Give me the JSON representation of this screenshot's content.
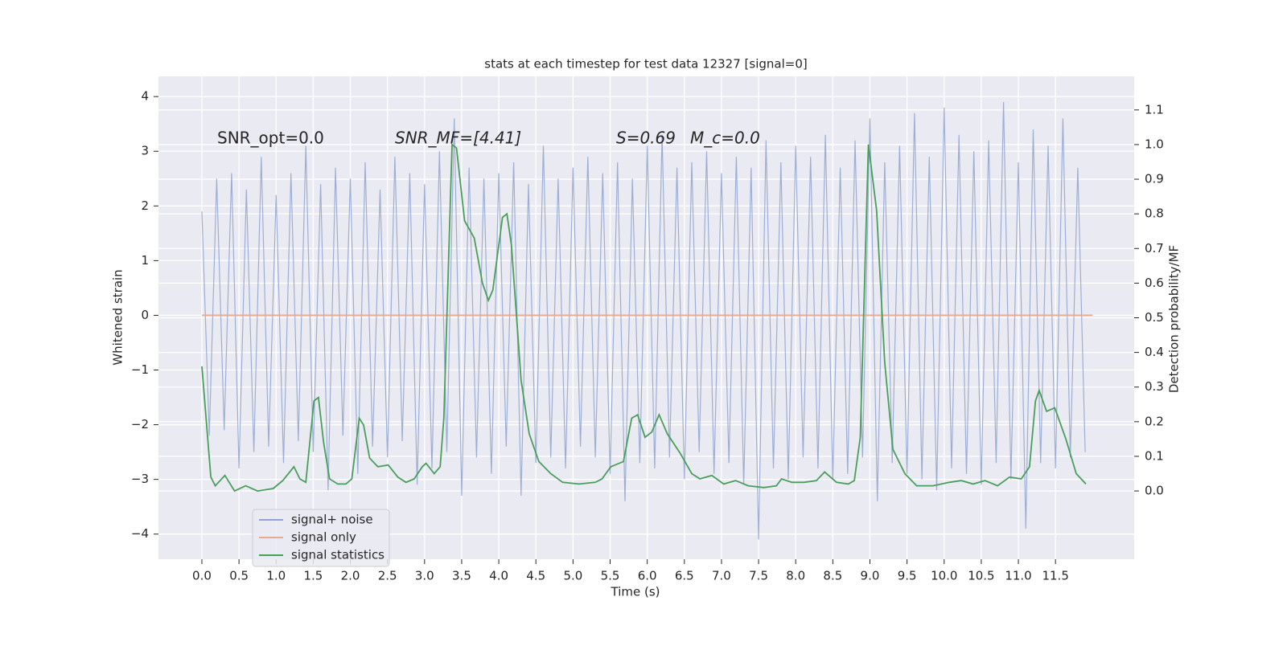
{
  "chart_data": {
    "type": "line",
    "title": "stats at each timestep for test data 12327 [signal=0]",
    "xlabel": "Time (s)",
    "ylabel": "Whitened strain",
    "y2label": "Detection probability/MF",
    "annotations": [
      "SNR_opt=0.0",
      "SNR_MF=[4.41]",
      "S=0.69",
      "M_c=0.0"
    ],
    "xlim": [
      -0.585,
      12.56
    ],
    "ylim": [
      -4.46,
      4.37
    ],
    "y2lim": [
      -0.197,
      1.197
    ],
    "xticks": [
      {
        "value": 0,
        "label": "0.0"
      },
      {
        "value": 0.5,
        "label": "0.5"
      },
      {
        "value": 1,
        "label": "1.0"
      },
      {
        "value": 1.5,
        "label": "1.5"
      },
      {
        "value": 2,
        "label": "2.0"
      },
      {
        "value": 2.5,
        "label": "2.5"
      },
      {
        "value": 3,
        "label": "3.0"
      },
      {
        "value": 3.5,
        "label": "3.5"
      },
      {
        "value": 4,
        "label": "4.0"
      },
      {
        "value": 4.5,
        "label": "4.5"
      },
      {
        "value": 5,
        "label": "5.0"
      },
      {
        "value": 5.5,
        "label": "5.5"
      },
      {
        "value": 6,
        "label": "6.0"
      },
      {
        "value": 6.5,
        "label": "6.5"
      },
      {
        "value": 7,
        "label": "7.0"
      },
      {
        "value": 7.5,
        "label": "7.5"
      },
      {
        "value": 8,
        "label": "8.0"
      },
      {
        "value": 8.5,
        "label": "8.5"
      },
      {
        "value": 9,
        "label": "9.0"
      },
      {
        "value": 9.5,
        "label": "9.5"
      },
      {
        "value": 10,
        "label": "10.0"
      },
      {
        "value": 10.5,
        "label": "10.5"
      },
      {
        "value": 11,
        "label": "11.0"
      },
      {
        "value": 11.5,
        "label": "11.5"
      }
    ],
    "yticks": [
      {
        "value": -4,
        "label": "−4"
      },
      {
        "value": -3,
        "label": "−3"
      },
      {
        "value": -2,
        "label": "−2"
      },
      {
        "value": -1,
        "label": "−1"
      },
      0,
      1,
      2,
      3,
      4
    ],
    "y2ticks": [
      {
        "value": 0,
        "label": "0.0"
      },
      {
        "value": 0.1,
        "label": "0.1"
      },
      {
        "value": 0.2,
        "label": "0.2"
      },
      {
        "value": 0.3,
        "label": "0.3"
      },
      {
        "value": 0.4,
        "label": "0.4"
      },
      {
        "value": 0.5,
        "label": "0.5"
      },
      {
        "value": 0.6,
        "label": "0.6"
      },
      {
        "value": 0.7,
        "label": "0.7"
      },
      {
        "value": 0.8,
        "label": "0.8"
      },
      {
        "value": 0.9,
        "label": "0.9"
      },
      {
        "value": 1,
        "label": "1.0"
      },
      {
        "value": 1.1,
        "label": "1.1"
      }
    ],
    "grid": true,
    "legend": "lower left",
    "series": [
      {
        "name": "signal+ noise",
        "color": "#8fa3cf",
        "x": [
          0.0,
          0.1,
          0.2,
          0.3,
          0.4,
          0.5,
          0.6,
          0.7,
          0.8,
          0.9,
          1.0,
          1.1,
          1.2,
          1.3,
          1.4,
          1.5,
          1.6,
          1.7,
          1.8,
          1.9,
          2.0,
          2.1,
          2.2,
          2.3,
          2.4,
          2.5,
          2.6,
          2.7,
          2.8,
          2.9,
          3.0,
          3.1,
          3.2,
          3.3,
          3.4,
          3.5,
          3.6,
          3.7,
          3.8,
          3.9,
          4.0,
          4.1,
          4.2,
          4.3,
          4.4,
          4.5,
          4.6,
          4.7,
          4.8,
          4.9,
          5.0,
          5.1,
          5.2,
          5.3,
          5.4,
          5.5,
          5.6,
          5.7,
          5.8,
          5.9,
          6.0,
          6.1,
          6.2,
          6.3,
          6.4,
          6.5,
          6.6,
          6.7,
          6.8,
          6.9,
          7.0,
          7.1,
          7.2,
          7.3,
          7.4,
          7.5,
          7.6,
          7.7,
          7.8,
          7.9,
          8.0,
          8.1,
          8.2,
          8.3,
          8.4,
          8.5,
          8.6,
          8.7,
          8.8,
          8.9,
          9.0,
          9.1,
          9.2,
          9.3,
          9.4,
          9.5,
          9.6,
          9.7,
          9.8,
          9.9,
          10.0,
          10.1,
          10.2,
          10.3,
          10.4,
          10.5,
          10.6,
          10.7,
          10.8,
          10.9,
          11.0,
          11.1,
          11.2,
          11.3,
          11.4,
          11.5,
          11.6,
          11.7,
          11.8,
          11.9
        ],
        "values": [
          1.9,
          -2.2,
          2.5,
          -2.1,
          2.6,
          -2.8,
          2.3,
          -2.5,
          2.9,
          -2.4,
          2.2,
          -2.7,
          2.6,
          -2.3,
          3.1,
          -2.5,
          2.4,
          -3.2,
          2.7,
          -2.2,
          2.5,
          -2.9,
          2.8,
          -2.4,
          2.3,
          -2.6,
          2.9,
          -2.3,
          2.6,
          -3.1,
          2.4,
          -2.8,
          3.0,
          -2.5,
          3.6,
          -3.3,
          2.7,
          -2.6,
          2.5,
          -2.9,
          2.6,
          -2.4,
          2.8,
          -3.3,
          2.4,
          -2.7,
          3.1,
          -2.6,
          2.5,
          -2.8,
          2.7,
          -2.4,
          2.9,
          -2.6,
          2.6,
          -2.9,
          2.8,
          -3.4,
          2.5,
          -2.7,
          3.1,
          -2.8,
          3.3,
          -2.6,
          2.7,
          -3.0,
          2.8,
          -2.5,
          3.0,
          -2.9,
          2.6,
          -2.7,
          2.9,
          -3.1,
          2.7,
          -4.1,
          3.2,
          -2.8,
          2.8,
          -3.0,
          3.1,
          -2.6,
          2.9,
          -2.8,
          3.3,
          -3.0,
          2.7,
          -2.9,
          3.2,
          -2.6,
          3.6,
          -3.4,
          2.8,
          -2.7,
          3.1,
          -2.9,
          3.7,
          -3.0,
          2.9,
          -3.2,
          3.8,
          -2.8,
          3.3,
          -2.9,
          3.0,
          -3.1,
          3.2,
          -2.7,
          3.9,
          -3.0,
          2.8,
          -3.9,
          3.4,
          -2.7,
          3.1,
          -2.8,
          3.6,
          -2.6,
          2.7,
          -2.5
        ]
      },
      {
        "name": "signal only",
        "color": "#e8a98e",
        "x": [
          0.0,
          12.0
        ],
        "values": [
          0,
          0
        ]
      },
      {
        "name": "signal statistics",
        "color": "#4a9e5c",
        "axis": "y2",
        "x": [
          0.0,
          0.12,
          0.18,
          0.31,
          0.44,
          0.59,
          0.75,
          0.96,
          1.09,
          1.24,
          1.32,
          1.4,
          1.51,
          1.57,
          1.64,
          1.72,
          1.83,
          1.94,
          2.02,
          2.12,
          2.18,
          2.26,
          2.37,
          2.51,
          2.64,
          2.75,
          2.86,
          2.97,
          3.02,
          3.13,
          3.21,
          3.26,
          3.37,
          3.43,
          3.54,
          3.67,
          3.78,
          3.86,
          3.92,
          4.05,
          4.11,
          4.17,
          4.3,
          4.41,
          4.54,
          4.7,
          4.86,
          5.08,
          5.3,
          5.39,
          5.51,
          5.68,
          5.79,
          5.87,
          5.97,
          6.06,
          6.16,
          6.27,
          6.44,
          6.6,
          6.71,
          6.87,
          7.03,
          7.19,
          7.36,
          7.57,
          7.74,
          7.81,
          7.95,
          8.11,
          8.28,
          8.39,
          8.55,
          8.71,
          8.79,
          8.87,
          8.98,
          9.09,
          9.2,
          9.31,
          9.47,
          9.63,
          9.85,
          10.07,
          10.23,
          10.39,
          10.55,
          10.72,
          10.88,
          11.04,
          11.15,
          11.23,
          11.28,
          11.38,
          11.49,
          11.64,
          11.78,
          11.91
        ],
        "values": [
          0.36,
          0.04,
          0.015,
          0.045,
          0.0,
          0.015,
          0.0,
          0.007,
          0.03,
          0.07,
          0.035,
          0.025,
          0.26,
          0.27,
          0.14,
          0.035,
          0.02,
          0.02,
          0.035,
          0.21,
          0.19,
          0.095,
          0.07,
          0.075,
          0.04,
          0.025,
          0.035,
          0.07,
          0.08,
          0.05,
          0.07,
          0.21,
          1.0,
          0.99,
          0.78,
          0.73,
          0.6,
          0.55,
          0.58,
          0.79,
          0.8,
          0.71,
          0.32,
          0.165,
          0.085,
          0.05,
          0.025,
          0.02,
          0.025,
          0.035,
          0.07,
          0.085,
          0.21,
          0.22,
          0.155,
          0.17,
          0.22,
          0.165,
          0.11,
          0.05,
          0.035,
          0.045,
          0.02,
          0.03,
          0.015,
          0.01,
          0.015,
          0.035,
          0.025,
          0.025,
          0.03,
          0.055,
          0.025,
          0.02,
          0.03,
          0.155,
          1.0,
          0.81,
          0.37,
          0.12,
          0.05,
          0.015,
          0.015,
          0.025,
          0.03,
          0.02,
          0.03,
          0.015,
          0.04,
          0.035,
          0.07,
          0.26,
          0.29,
          0.23,
          0.24,
          0.15,
          0.05,
          0.02
        ]
      }
    ]
  }
}
